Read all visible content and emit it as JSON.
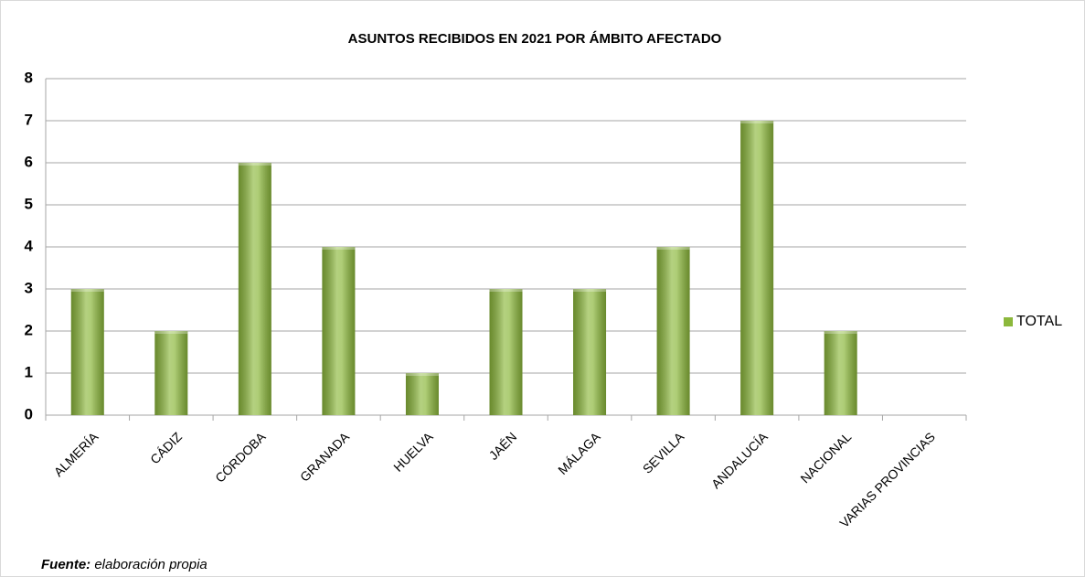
{
  "chart_data": {
    "type": "bar",
    "title": "ASUNTOS RECIBIDOS EN 2021 POR ÁMBITO AFECTADO",
    "categories": [
      "ALMERÍA",
      "CÁDIZ",
      "CÓRDOBA",
      "GRANADA",
      "HUELVA",
      "JAÉN",
      "MÁLAGA",
      "SEVILLA",
      "ANDALUCÍA",
      "NACIONAL",
      "VARIAS PROVINCIAS"
    ],
    "series": [
      {
        "name": "TOTAL",
        "color": "#8cb83c",
        "values": [
          3,
          2,
          6,
          4,
          1,
          3,
          3,
          4,
          7,
          2,
          0
        ]
      }
    ],
    "ylim": [
      0,
      8
    ],
    "yticks": [
      0,
      1,
      2,
      3,
      4,
      5,
      6,
      7,
      8
    ],
    "grid": true,
    "legend": "right",
    "source": {
      "label": "Fuente:",
      "text": "elaboración propia"
    }
  }
}
